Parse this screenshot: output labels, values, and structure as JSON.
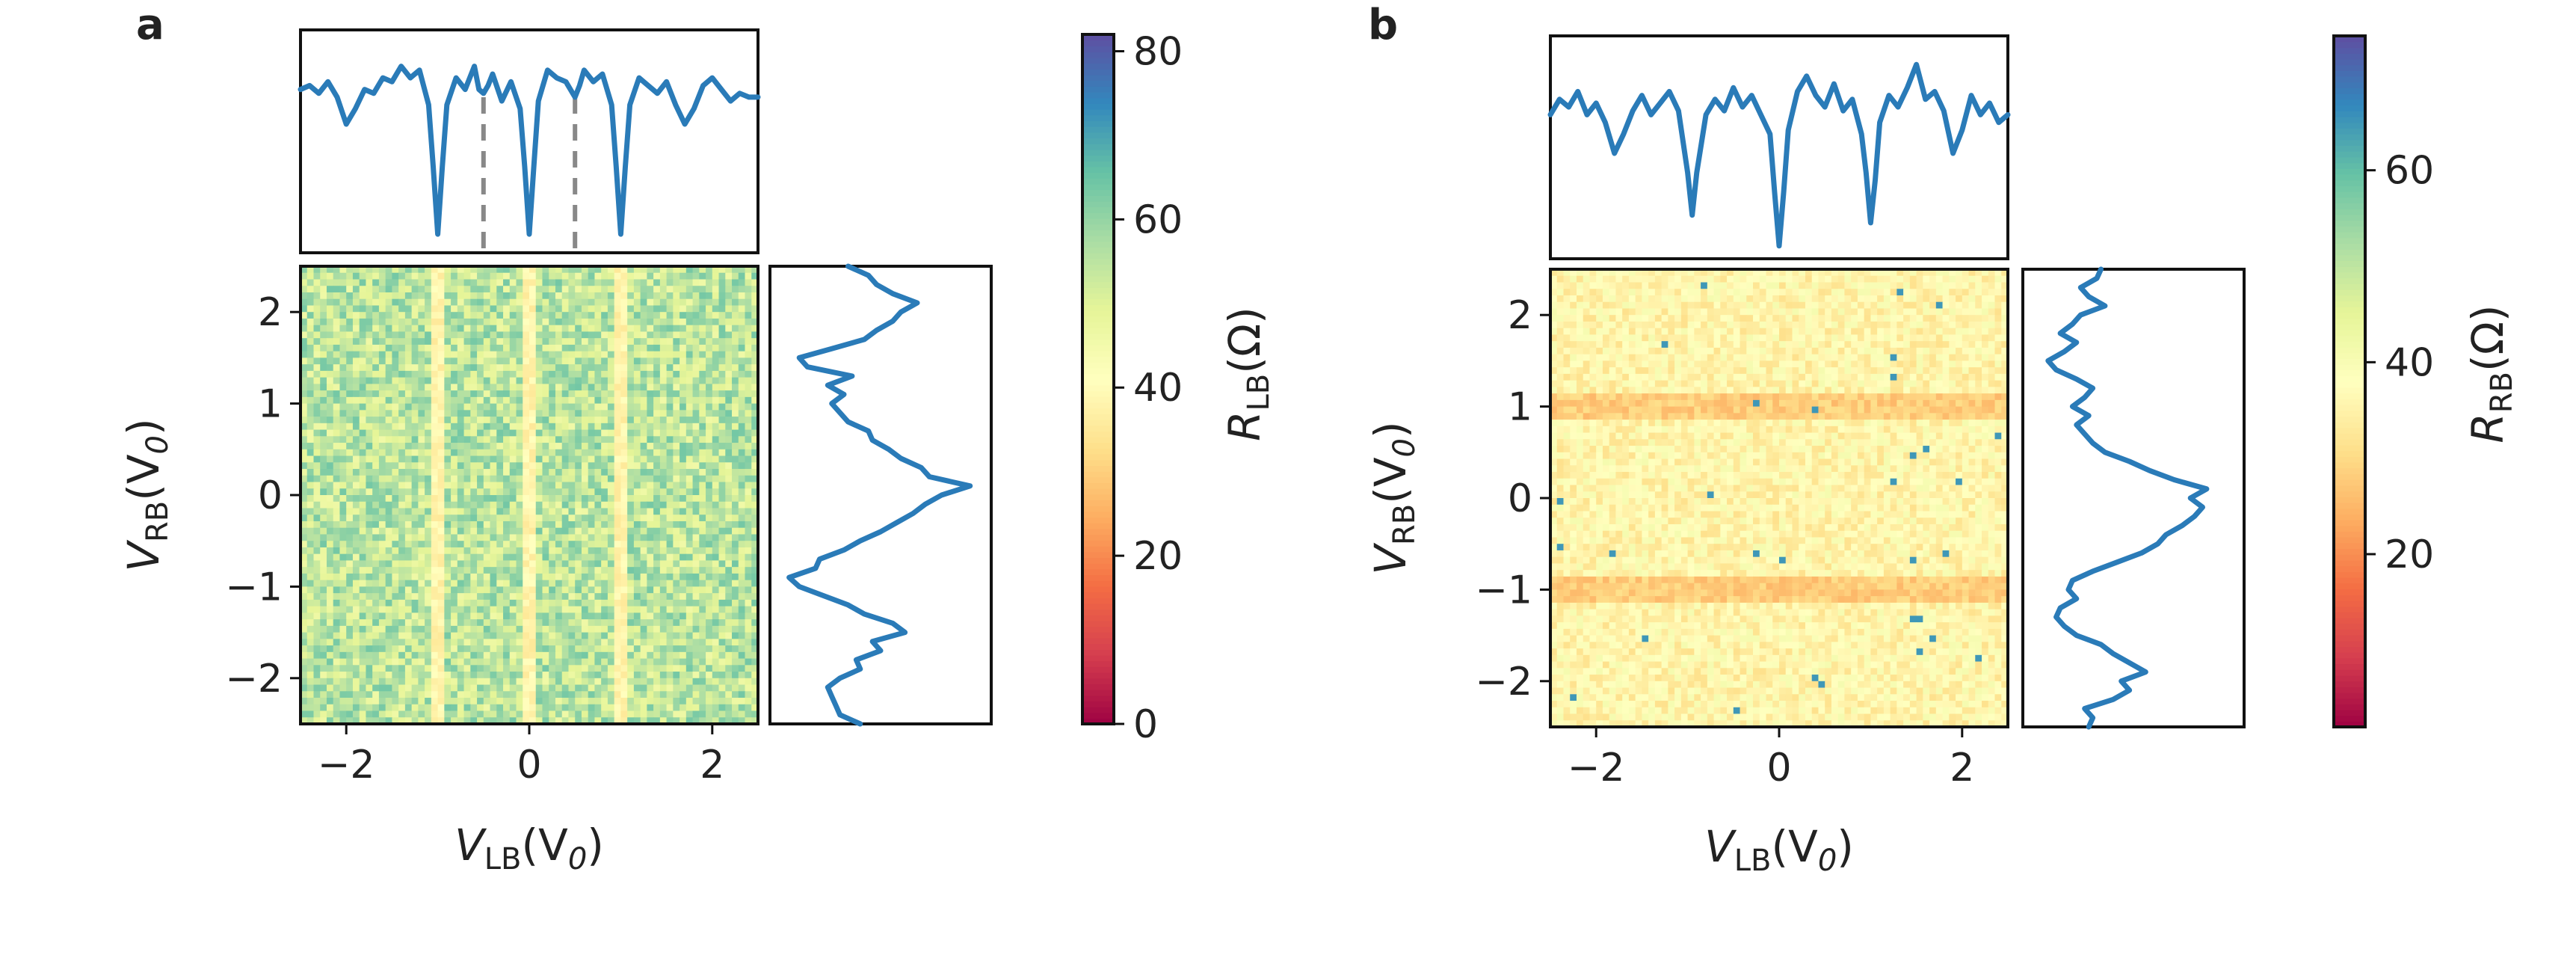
{
  "chart_data": [
    {
      "panel": "a",
      "type": "heatmap",
      "x": {
        "label_main": "V",
        "label_sub": "LB",
        "label_unit": "(V",
        "label_unit_sub": "0",
        "label_close": ")",
        "range": [
          -2.5,
          2.5
        ],
        "ticks": [
          -2,
          0,
          2
        ],
        "tick_labels": [
          "−2",
          "0",
          "2"
        ]
      },
      "y": {
        "label_main": "V",
        "label_sub": "RB",
        "label_unit": "(V",
        "label_unit_sub": "0",
        "label_close": ")",
        "range": [
          -2.5,
          2.5
        ],
        "ticks": [
          -2,
          -1,
          0,
          1,
          2
        ],
        "tick_labels": [
          "−2",
          "−1",
          "0",
          "1",
          "2"
        ]
      },
      "colorbar": {
        "label_main": "R",
        "label_sub": "LB",
        "label_unit": "(Ω)",
        "range": [
          0,
          82
        ],
        "ticks": [
          0,
          20,
          40,
          60,
          80
        ],
        "tick_labels": [
          "0",
          "20",
          "40",
          "60",
          "80"
        ],
        "colormap": "Spectral"
      },
      "heatmap_model": {
        "base": 55,
        "stripe_centers": [
          -1,
          0,
          1
        ],
        "stripe_value": 38,
        "horizontal_bands": [],
        "band_value": 0,
        "noise": 18,
        "grid": [
          70,
          70
        ]
      },
      "top_trace": {
        "x": [
          -2.5,
          -2.4,
          -2.3,
          -2.2,
          -2.1,
          -2.0,
          -1.9,
          -1.8,
          -1.7,
          -1.6,
          -1.5,
          -1.4,
          -1.3,
          -1.2,
          -1.1,
          -1.05,
          -1.0,
          -0.95,
          -0.9,
          -0.8,
          -0.7,
          -0.6,
          -0.55,
          -0.5,
          -0.45,
          -0.4,
          -0.3,
          -0.2,
          -0.1,
          -0.05,
          0.0,
          0.05,
          0.1,
          0.2,
          0.3,
          0.4,
          0.45,
          0.5,
          0.55,
          0.6,
          0.7,
          0.8,
          0.9,
          0.95,
          1.0,
          1.05,
          1.1,
          1.2,
          1.3,
          1.4,
          1.5,
          1.6,
          1.7,
          1.8,
          1.9,
          2.0,
          2.1,
          2.2,
          2.3,
          2.4,
          2.5
        ],
        "y": [
          0.8,
          0.82,
          0.78,
          0.84,
          0.76,
          0.62,
          0.7,
          0.8,
          0.78,
          0.86,
          0.84,
          0.92,
          0.86,
          0.9,
          0.72,
          0.4,
          0.05,
          0.4,
          0.72,
          0.86,
          0.8,
          0.92,
          0.8,
          0.78,
          0.82,
          0.88,
          0.74,
          0.84,
          0.7,
          0.4,
          0.05,
          0.4,
          0.74,
          0.9,
          0.86,
          0.84,
          0.8,
          0.76,
          0.82,
          0.9,
          0.84,
          0.88,
          0.72,
          0.4,
          0.05,
          0.4,
          0.72,
          0.86,
          0.82,
          0.78,
          0.84,
          0.72,
          0.62,
          0.7,
          0.82,
          0.86,
          0.8,
          0.74,
          0.78,
          0.76,
          0.76
        ],
        "guides": [
          -0.5,
          0.5
        ]
      },
      "right_trace": {
        "y": [
          -2.5,
          -2.4,
          -2.3,
          -2.2,
          -2.1,
          -2.0,
          -1.9,
          -1.8,
          -1.7,
          -1.6,
          -1.5,
          -1.4,
          -1.3,
          -1.2,
          -1.1,
          -1.0,
          -0.9,
          -0.8,
          -0.7,
          -0.6,
          -0.5,
          -0.4,
          -0.3,
          -0.2,
          -0.1,
          0.0,
          0.1,
          0.2,
          0.3,
          0.4,
          0.5,
          0.6,
          0.7,
          0.8,
          0.9,
          1.0,
          1.1,
          1.2,
          1.3,
          1.4,
          1.5,
          1.6,
          1.7,
          1.8,
          1.9,
          2.0,
          2.1,
          2.2,
          2.3,
          2.4,
          2.5
        ],
        "x": [
          0.4,
          0.3,
          0.28,
          0.26,
          0.24,
          0.3,
          0.4,
          0.38,
          0.5,
          0.46,
          0.62,
          0.56,
          0.42,
          0.34,
          0.22,
          0.1,
          0.05,
          0.18,
          0.2,
          0.32,
          0.4,
          0.5,
          0.58,
          0.66,
          0.72,
          0.8,
          0.94,
          0.74,
          0.7,
          0.6,
          0.54,
          0.46,
          0.44,
          0.34,
          0.3,
          0.26,
          0.32,
          0.24,
          0.36,
          0.14,
          0.1,
          0.26,
          0.42,
          0.48,
          0.56,
          0.6,
          0.68,
          0.56,
          0.48,
          0.44,
          0.34
        ]
      }
    },
    {
      "panel": "b",
      "type": "heatmap",
      "x": {
        "label_main": "V",
        "label_sub": "LB",
        "label_unit": "(V",
        "label_unit_sub": "0",
        "label_close": ")",
        "range": [
          -2.5,
          2.5
        ],
        "ticks": [
          -2,
          0,
          2
        ],
        "tick_labels": [
          "−2",
          "0",
          "2"
        ]
      },
      "y": {
        "label_main": "V",
        "label_sub": "RB",
        "label_unit": "(V",
        "label_unit_sub": "0",
        "label_close": ")",
        "range": [
          -2.5,
          2.5
        ],
        "ticks": [
          -2,
          -1,
          0,
          1,
          2
        ],
        "tick_labels": [
          "−2",
          "−1",
          "0",
          "1",
          "2"
        ]
      },
      "colorbar": {
        "label_main": "R",
        "label_sub": "RB",
        "label_unit": "(Ω)",
        "range": [
          2,
          74
        ],
        "ticks": [
          20,
          40,
          60
        ],
        "tick_labels": [
          "20",
          "40",
          "60"
        ],
        "colormap": "Spectral"
      },
      "heatmap_model": {
        "base": 36,
        "stripe_centers": [],
        "stripe_value": 0,
        "horizontal_bands": [
          -1,
          1
        ],
        "band_value": 28,
        "noise": 10,
        "grid": [
          70,
          70
        ]
      },
      "top_trace": {
        "x": [
          -2.5,
          -2.4,
          -2.3,
          -2.2,
          -2.1,
          -2.0,
          -1.9,
          -1.8,
          -1.7,
          -1.6,
          -1.5,
          -1.4,
          -1.3,
          -1.2,
          -1.1,
          -1.0,
          -0.95,
          -0.9,
          -0.8,
          -0.7,
          -0.6,
          -0.5,
          -0.4,
          -0.3,
          -0.2,
          -0.1,
          -0.05,
          0.0,
          0.05,
          0.1,
          0.2,
          0.3,
          0.4,
          0.5,
          0.6,
          0.7,
          0.8,
          0.9,
          0.95,
          1.0,
          1.05,
          1.1,
          1.2,
          1.3,
          1.4,
          1.5,
          1.6,
          1.7,
          1.8,
          1.9,
          2.0,
          2.1,
          2.2,
          2.3,
          2.4,
          2.5
        ],
        "y": [
          0.7,
          0.78,
          0.74,
          0.82,
          0.7,
          0.76,
          0.66,
          0.5,
          0.6,
          0.72,
          0.8,
          0.7,
          0.76,
          0.82,
          0.72,
          0.4,
          0.18,
          0.4,
          0.7,
          0.78,
          0.72,
          0.84,
          0.74,
          0.8,
          0.7,
          0.6,
          0.3,
          0.02,
          0.3,
          0.62,
          0.82,
          0.9,
          0.8,
          0.74,
          0.86,
          0.72,
          0.78,
          0.6,
          0.4,
          0.14,
          0.36,
          0.66,
          0.8,
          0.74,
          0.84,
          0.96,
          0.78,
          0.82,
          0.72,
          0.5,
          0.62,
          0.8,
          0.7,
          0.76,
          0.66,
          0.7
        ],
        "guides": []
      },
      "right_trace": {
        "y": [
          -2.5,
          -2.4,
          -2.3,
          -2.2,
          -2.1,
          -2.0,
          -1.9,
          -1.8,
          -1.7,
          -1.6,
          -1.5,
          -1.4,
          -1.3,
          -1.2,
          -1.1,
          -1.0,
          -0.9,
          -0.8,
          -0.7,
          -0.6,
          -0.5,
          -0.4,
          -0.3,
          -0.2,
          -0.1,
          0.0,
          0.1,
          0.2,
          0.3,
          0.4,
          0.5,
          0.6,
          0.7,
          0.8,
          0.9,
          1.0,
          1.1,
          1.2,
          1.3,
          1.4,
          1.5,
          1.6,
          1.7,
          1.8,
          1.9,
          2.0,
          2.1,
          2.2,
          2.3,
          2.4,
          2.5
        ],
        "x": [
          0.28,
          0.3,
          0.26,
          0.4,
          0.48,
          0.44,
          0.56,
          0.48,
          0.4,
          0.34,
          0.22,
          0.16,
          0.12,
          0.14,
          0.22,
          0.18,
          0.2,
          0.3,
          0.42,
          0.54,
          0.62,
          0.66,
          0.74,
          0.8,
          0.84,
          0.78,
          0.86,
          0.7,
          0.58,
          0.48,
          0.36,
          0.3,
          0.26,
          0.22,
          0.28,
          0.2,
          0.26,
          0.3,
          0.22,
          0.12,
          0.08,
          0.16,
          0.22,
          0.14,
          0.2,
          0.24,
          0.36,
          0.28,
          0.24,
          0.32,
          0.34
        ]
      }
    }
  ]
}
